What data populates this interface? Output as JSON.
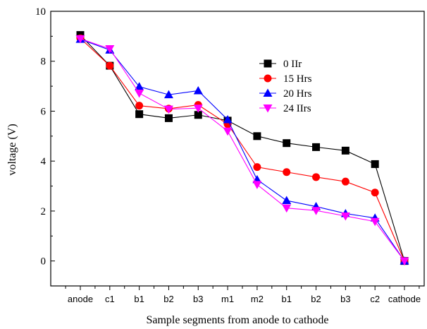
{
  "chart_data": {
    "type": "line",
    "categories": [
      "anode",
      "c1",
      "b1",
      "b2",
      "b3",
      "m1",
      "m2",
      "b1",
      "b2",
      "b3",
      "c2",
      "cathode"
    ],
    "xlabel": "Sample segments from anode to cathode",
    "ylabel": "voltage (V)",
    "ylim": [
      -1,
      10
    ],
    "yticks": [
      0,
      2,
      4,
      6,
      8,
      10
    ],
    "grid": false,
    "legend_position": "top-right",
    "series": [
      {
        "name": "0 IIr",
        "color": "#000000",
        "marker": "square",
        "values": [
          9.05,
          7.82,
          5.88,
          5.72,
          5.85,
          5.62,
          5.0,
          4.72,
          4.56,
          4.42,
          3.88,
          0.0
        ]
      },
      {
        "name": "15 Hrs",
        "color": "#ff0000",
        "marker": "circle",
        "values": [
          8.92,
          7.82,
          6.22,
          6.1,
          6.25,
          5.48,
          3.76,
          3.56,
          3.36,
          3.18,
          2.74,
          0.0
        ]
      },
      {
        "name": "20 Hrs",
        "color": "#0000ff",
        "marker": "triangle-up",
        "values": [
          8.88,
          8.45,
          6.98,
          6.66,
          6.82,
          5.66,
          3.26,
          2.42,
          2.18,
          1.9,
          1.72,
          0.0
        ]
      },
      {
        "name": "24 IIrs",
        "color": "#ff00ff",
        "marker": "triangle-down",
        "values": [
          8.9,
          8.5,
          6.72,
          6.08,
          6.12,
          5.2,
          3.06,
          2.12,
          2.02,
          1.8,
          1.58,
          0.0
        ]
      }
    ]
  }
}
